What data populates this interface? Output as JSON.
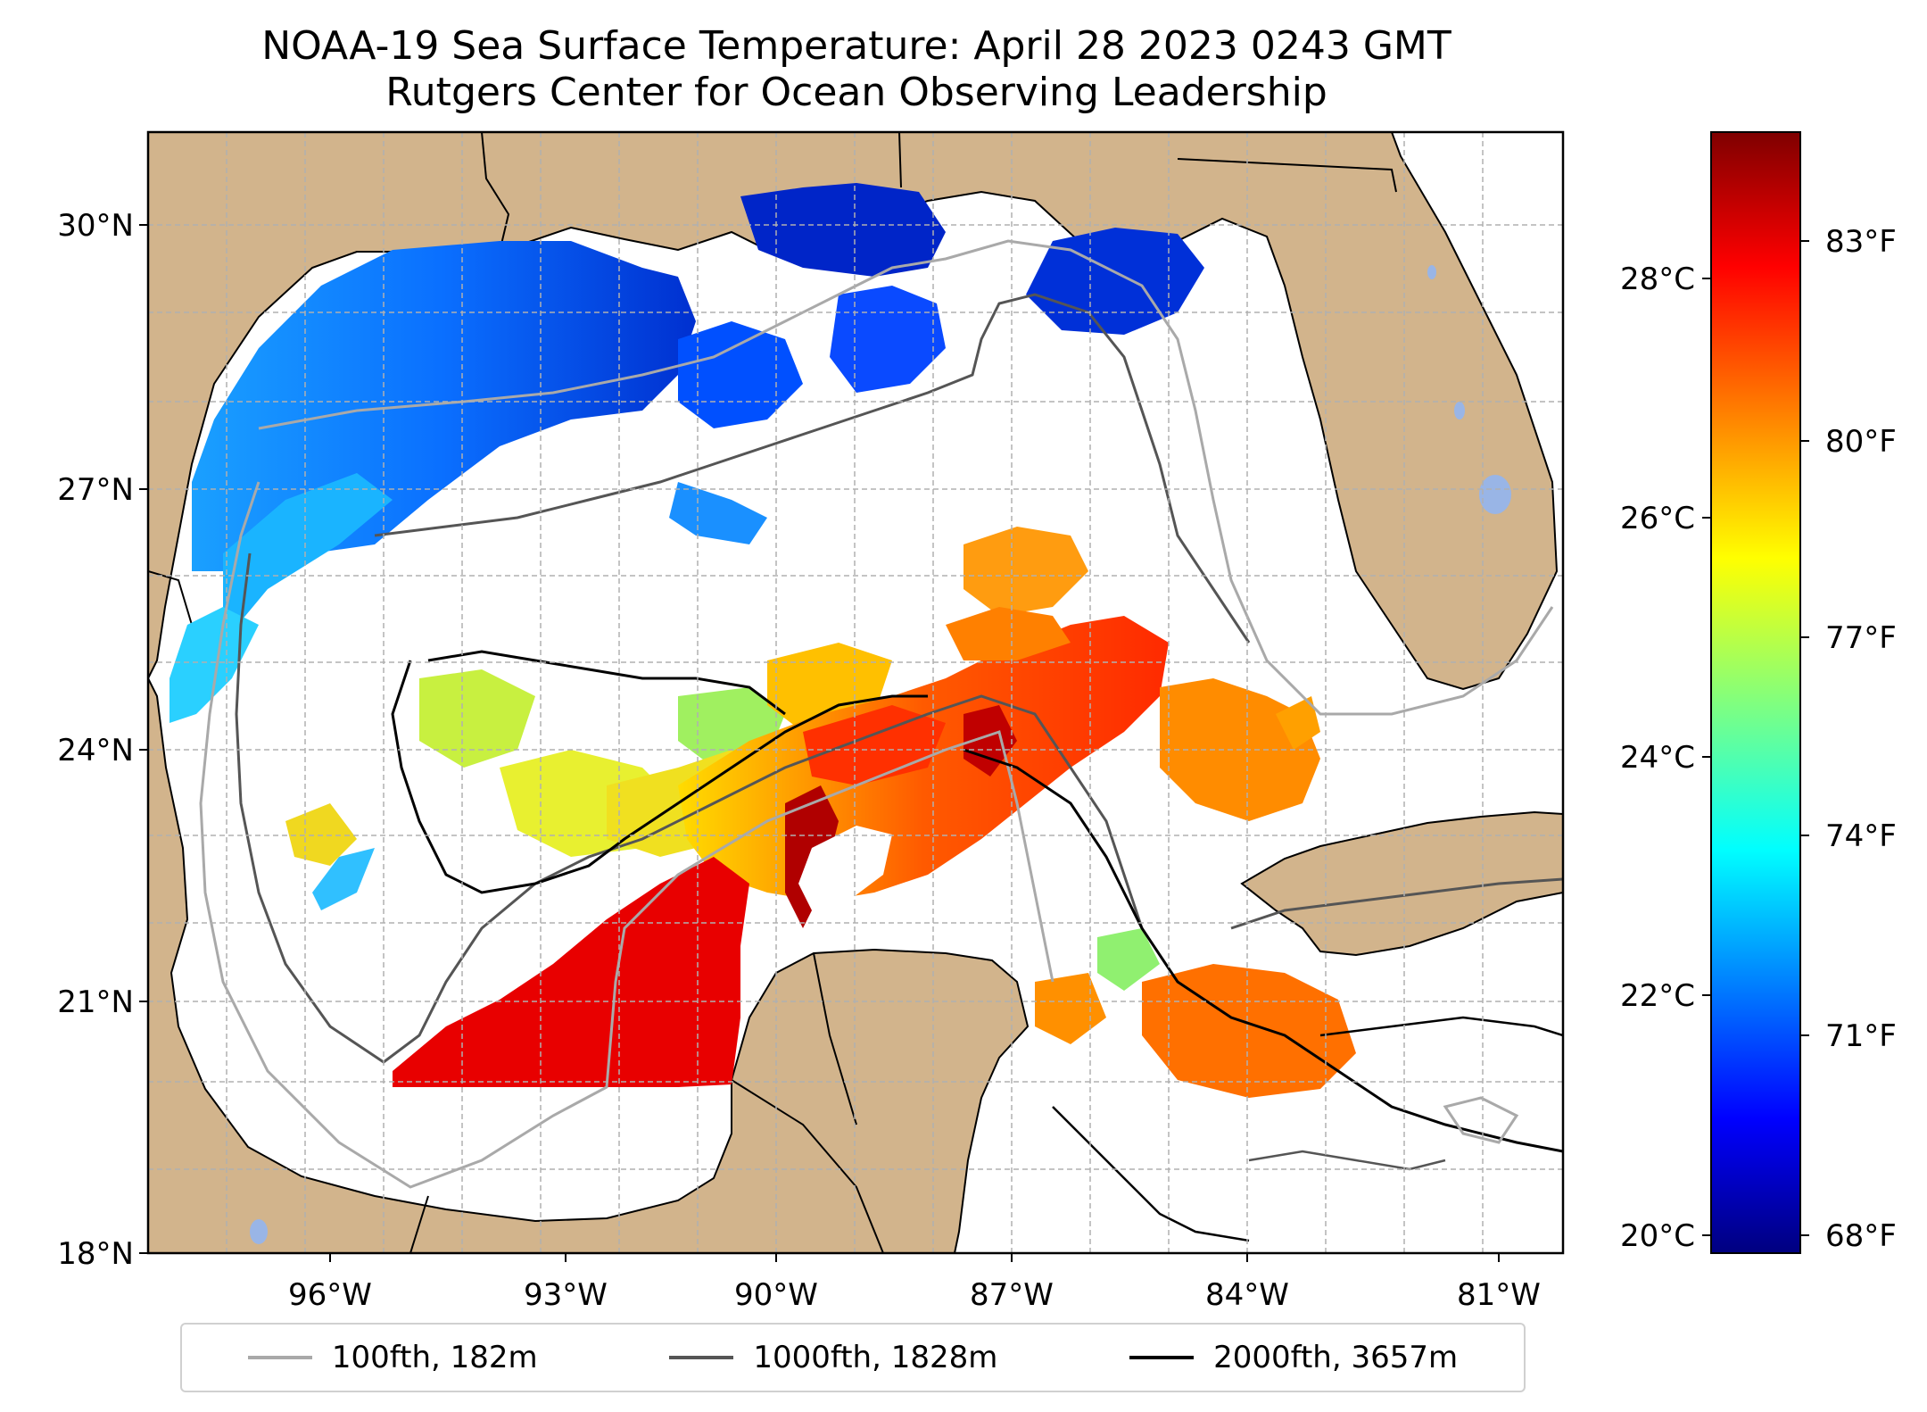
{
  "title_line1": "NOAA-19 Sea Surface Temperature: April 28 2023 0243 GMT",
  "title_line2": "Rutgers Center for Ocean Observing Leadership",
  "lat_ticks": [
    "30°N",
    "27°N",
    "24°N",
    "21°N",
    "18°N"
  ],
  "lon_ticks": [
    "96°W",
    "93°W",
    "90°W",
    "87°W",
    "84°W",
    "81°W"
  ],
  "colorbar": {
    "celsius_ticks": [
      "28°C",
      "26°C",
      "24°C",
      "22°C",
      "20°C"
    ],
    "fahrenheit_ticks": [
      "83°F",
      "80°F",
      "77°F",
      "74°F",
      "71°F",
      "68°F"
    ],
    "colormap": [
      "#00007f",
      "#0000ff",
      "#007fff",
      "#00ffff",
      "#7fff7f",
      "#ffff00",
      "#ff7f00",
      "#ff0000",
      "#7f0000"
    ]
  },
  "colors": {
    "land": "#d2b48c",
    "lake": "#99b5e6",
    "contour_100": "#a9a9a9",
    "contour_1000": "#555555",
    "contour_2000": "#000000"
  },
  "legend": [
    {
      "label": "100fth, 182m",
      "color": "#a9a9a9"
    },
    {
      "label": "1000fth, 1828m",
      "color": "#555555"
    },
    {
      "label": "2000fth, 3657m",
      "color": "#000000"
    }
  ]
}
